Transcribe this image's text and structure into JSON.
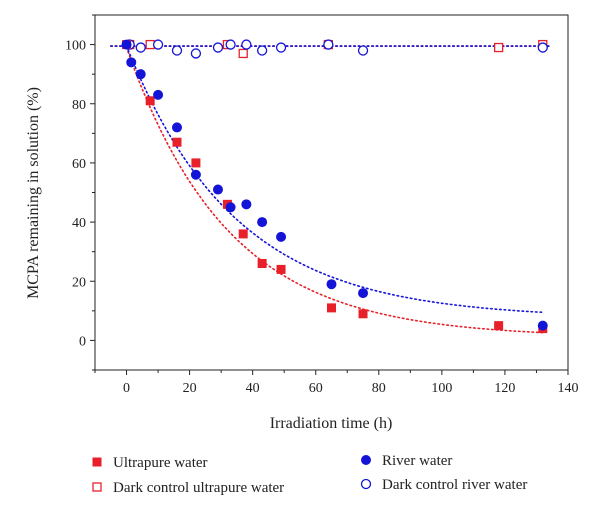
{
  "chart_data": {
    "type": "scatter",
    "xlabel": "Irradiation time (h)",
    "ylabel": "MCPA remaining in solution (%)",
    "xlim": [
      -10,
      140
    ],
    "ylim": [
      -10,
      110
    ],
    "xticks": [
      0,
      20,
      40,
      60,
      80,
      100,
      120,
      140
    ],
    "yticks": [
      0,
      20,
      40,
      60,
      80,
      100
    ],
    "grid": false,
    "legend_position": "bottom",
    "series": [
      {
        "name": "Ultrapure water",
        "marker": "square-filled",
        "color": "#e8202a",
        "x": [
          0,
          7.5,
          16,
          22,
          32,
          37,
          43,
          49,
          65,
          75,
          118,
          132
        ],
        "y": [
          100,
          81,
          67,
          60,
          46,
          36,
          26,
          24,
          11,
          9,
          5,
          4
        ]
      },
      {
        "name": "Dark control ultrapure water",
        "marker": "square-open",
        "color": "#e8202a",
        "x": [
          1,
          7.5,
          32,
          37,
          64,
          118,
          132
        ],
        "y": [
          100,
          100,
          100,
          97,
          100,
          99,
          100
        ]
      },
      {
        "name": "River water",
        "marker": "circle-filled",
        "color": "#1414d8",
        "x": [
          0,
          1.5,
          4.5,
          10,
          16,
          22,
          29,
          33,
          38,
          43,
          49,
          65,
          75,
          132
        ],
        "y": [
          100,
          94,
          90,
          83,
          72,
          56,
          51,
          45,
          46,
          40,
          35,
          19,
          16,
          5
        ]
      },
      {
        "name": "Dark control river water",
        "marker": "circle-open",
        "color": "#1414d8",
        "x": [
          1,
          4.5,
          10,
          16,
          22,
          29,
          33,
          38,
          43,
          49,
          64,
          75,
          132
        ],
        "y": [
          100,
          99,
          100,
          98,
          97,
          99,
          100,
          100,
          98,
          99,
          100,
          98,
          99
        ]
      }
    ],
    "fit_lines": [
      {
        "color": "#e8202a",
        "style": "dotted",
        "model": "exponential_decay",
        "a": 98,
        "k": 0.031,
        "c": 1
      },
      {
        "color": "#1414d8",
        "style": "dotted",
        "model": "exponential_decay",
        "a": 92,
        "k": 0.029,
        "c": 7.5
      },
      {
        "color": "#e8202a",
        "style": "dotted",
        "model": "constant",
        "value": 99.5
      },
      {
        "color": "#1414d8",
        "style": "dotted",
        "model": "constant",
        "value": 99.5
      }
    ]
  }
}
